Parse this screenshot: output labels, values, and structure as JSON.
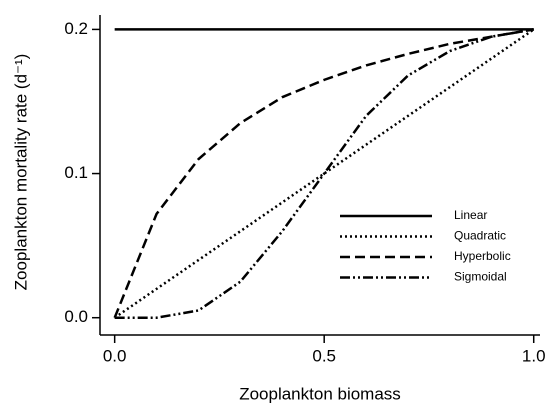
{
  "chart_data": {
    "type": "line",
    "x_label": "Zooplankton biomass",
    "y_label": "Zooplankton mortality rate (d⁻¹)",
    "x": [
      0,
      0.1,
      0.2,
      0.3,
      0.4,
      0.5,
      0.6,
      0.7,
      0.8,
      0.9,
      1.0
    ],
    "series": [
      {
        "name": "Linear",
        "color": "#000000",
        "dash": "none",
        "values": [
          0.2,
          0.2,
          0.2,
          0.2,
          0.2,
          0.2,
          0.2,
          0.2,
          0.2,
          0.2,
          0.2
        ]
      },
      {
        "name": "Quadratic",
        "color": "#000000",
        "dash": "2 3",
        "values": [
          0,
          0.02,
          0.04,
          0.06,
          0.08,
          0.1,
          0.12,
          0.14,
          0.16,
          0.18,
          0.2
        ]
      },
      {
        "name": "Hyperbolic",
        "color": "#000000",
        "dash": "10 5",
        "values": [
          0,
          0.072,
          0.11,
          0.135,
          0.153,
          0.165,
          0.175,
          0.183,
          0.19,
          0.195,
          0.2
        ]
      },
      {
        "name": "Sigmoidal",
        "color": "#000000",
        "dash": "10 3 2 3 2 3",
        "values": [
          0,
          0,
          0.005,
          0.025,
          0.06,
          0.1,
          0.14,
          0.168,
          0.185,
          0.195,
          0.2
        ]
      }
    ],
    "xlim": [
      -0.035,
      1.015
    ],
    "ylim": [
      -0.012,
      0.21
    ],
    "xticks": [
      {
        "value": 0,
        "label": "0.0"
      },
      {
        "value": 0.5,
        "label": "0.5"
      },
      {
        "value": 1.0,
        "label": "1.0"
      }
    ],
    "yticks": [
      {
        "value": 0,
        "label": "0.0"
      },
      {
        "value": 0.1,
        "label": "0.1"
      },
      {
        "value": 0.2,
        "label": "0.2"
      }
    ],
    "legend": "lower right"
  }
}
